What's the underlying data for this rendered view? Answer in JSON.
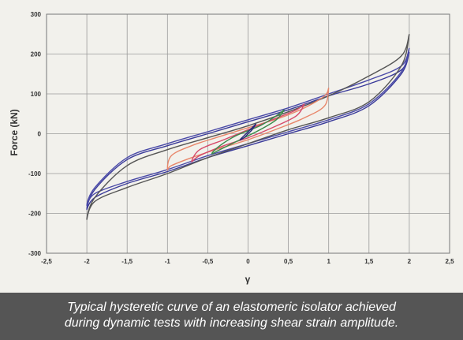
{
  "caption": {
    "line1": "Typical hysteretic curve of an elastomeric isolator achieved",
    "line2": "during dynamic tests with increasing shear strain amplitude."
  },
  "chart_data": {
    "type": "line",
    "title": "",
    "xlabel": "γ",
    "ylabel": "Force (kN)",
    "xlim": [
      -2.5,
      2.5
    ],
    "ylim": [
      -300,
      300
    ],
    "xticks": [
      -2.5,
      -2,
      -1.5,
      -1,
      -0.5,
      0,
      0.5,
      1,
      1.5,
      2,
      2.5
    ],
    "yticks": [
      -300,
      -200,
      -100,
      0,
      100,
      200,
      300
    ],
    "xtick_labels": [
      "-2,5",
      "-2",
      "-1,5",
      "-1",
      "-0,5",
      "0",
      "0,5",
      "1",
      "1,5",
      "2",
      "2,5"
    ],
    "ytick_labels": [
      "-300",
      "-200",
      "-100",
      "0",
      "100",
      "200",
      "300"
    ],
    "grid": true,
    "legend": "none",
    "series": [
      {
        "color": "#3a3a9a",
        "x": [
          2.0,
          1.9,
          1.5,
          1.0,
          0.5,
          0.0,
          -0.5,
          -1.0,
          -1.5,
          -1.9,
          -2.0,
          -1.9,
          -1.5,
          -1.0,
          -0.5,
          0.0,
          0.5,
          1.0,
          1.5,
          1.9,
          2.0
        ],
        "y": [
          205,
          150,
          70,
          30,
          0,
          -30,
          -60,
          -95,
          -125,
          -160,
          -190,
          -140,
          -65,
          -30,
          0,
          30,
          60,
          95,
          125,
          160,
          205
        ]
      },
      {
        "color": "#4a4aa8",
        "x": [
          2.0,
          1.9,
          1.5,
          1.0,
          0.5,
          0.0,
          -0.5,
          -1.0,
          -1.5,
          -1.9,
          -2.0,
          -1.9,
          -1.5,
          -1.0,
          -0.5,
          0.0,
          0.5,
          1.0,
          1.5,
          1.9,
          2.0
        ],
        "y": [
          215,
          155,
          75,
          35,
          5,
          -25,
          -55,
          -90,
          -120,
          -150,
          -180,
          -135,
          -60,
          -25,
          5,
          35,
          65,
          100,
          135,
          170,
          215
        ]
      },
      {
        "color": "#555555",
        "x": [
          2.0,
          1.9,
          1.5,
          1.0,
          0.5,
          0.0,
          -0.5,
          -1.0,
          -1.5,
          -1.9,
          -2.0,
          -1.9,
          -1.5,
          -1.0,
          -0.5,
          0.0,
          0.5,
          1.0,
          1.5,
          1.9,
          2.0
        ],
        "y": [
          250,
          170,
          80,
          40,
          10,
          -25,
          -60,
          -100,
          -135,
          -170,
          -215,
          -160,
          -80,
          -40,
          -10,
          20,
          55,
          95,
          145,
          195,
          250
        ]
      },
      {
        "color": "#e8866a",
        "x": [
          1.0,
          0.95,
          0.7,
          0.4,
          0.0,
          -0.4,
          -0.7,
          -0.95,
          -1.0,
          -0.95,
          -0.7,
          -0.4,
          0.0,
          0.4,
          0.7,
          0.95,
          1.0
        ],
        "y": [
          115,
          70,
          40,
          15,
          -15,
          -40,
          -60,
          -80,
          -90,
          -55,
          -30,
          -10,
          15,
          40,
          65,
          95,
          115
        ]
      },
      {
        "color": "#d64a6a",
        "x": [
          0.7,
          0.6,
          0.3,
          0.0,
          -0.3,
          -0.6,
          -0.7,
          -0.6,
          -0.3,
          0.0,
          0.3,
          0.6,
          0.7
        ],
        "y": [
          75,
          45,
          15,
          -10,
          -30,
          -55,
          -70,
          -40,
          -15,
          10,
          35,
          60,
          75
        ]
      },
      {
        "color": "#3a8a4a",
        "x": [
          0.45,
          0.35,
          0.15,
          -0.15,
          -0.35,
          -0.45,
          -0.35,
          -0.15,
          0.15,
          0.35,
          0.45
        ],
        "y": [
          60,
          35,
          10,
          -20,
          -40,
          -50,
          -30,
          -5,
          20,
          45,
          60
        ]
      },
      {
        "color": "#2a2a7a",
        "x": [
          0.1,
          0.05,
          0.0,
          -0.05,
          -0.1,
          -0.05,
          0.0,
          0.05,
          0.1
        ],
        "y": [
          25,
          10,
          0,
          -10,
          -15,
          -5,
          5,
          15,
          25
        ]
      }
    ]
  }
}
